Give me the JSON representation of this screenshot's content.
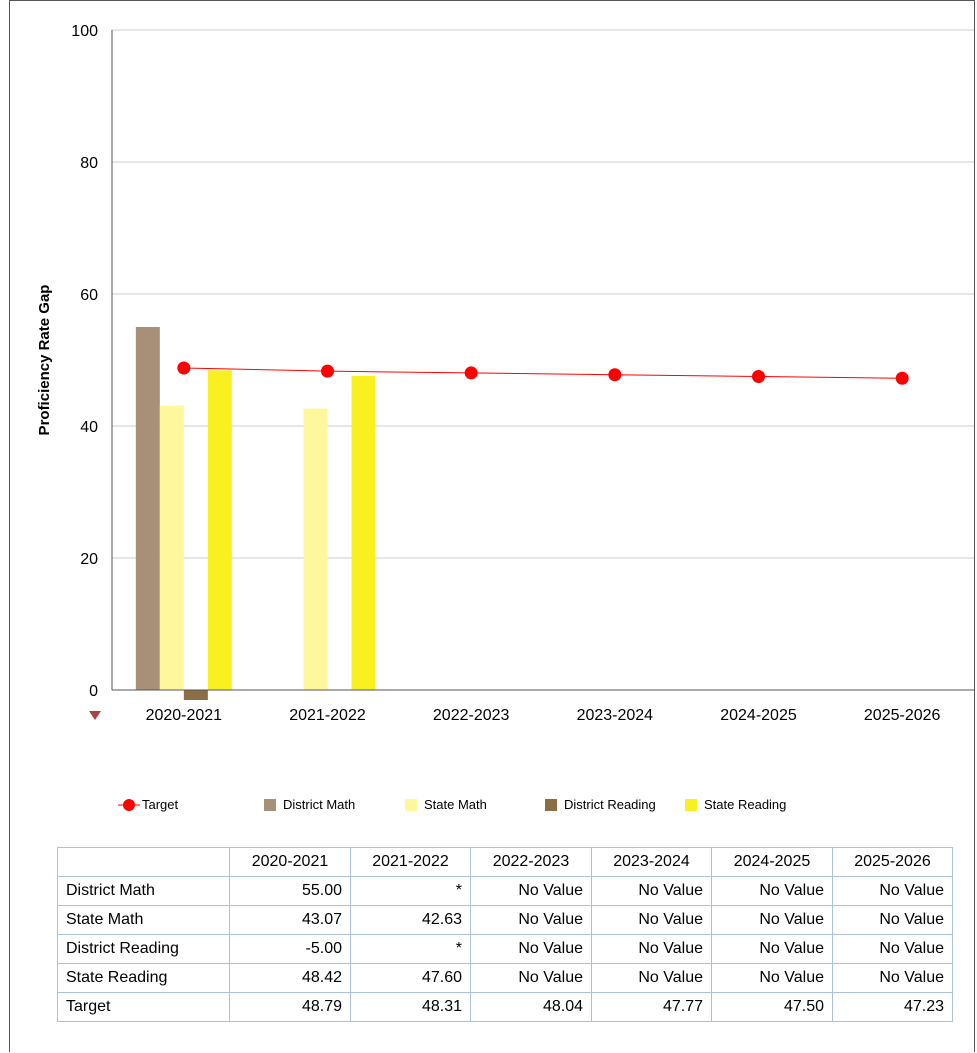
{
  "colors": {
    "target": "#ff0000",
    "district_math": "#a79078",
    "state_math": "#fff79b",
    "district_reading": "#8b6e45",
    "state_reading": "#f9f021",
    "gridline": "#cccccc",
    "axis_marker": "#b04040"
  },
  "chart_data": {
    "type": "bar",
    "ylabel": "Proficiency Rate Gap",
    "ylim": [
      0,
      100
    ],
    "yticks": [
      "0",
      "20",
      "40",
      "60",
      "80",
      "100"
    ],
    "categories": [
      "2020-2021",
      "2021-2022",
      "2022-2023",
      "2023-2024",
      "2024-2025",
      "2025-2026"
    ],
    "grid": true,
    "legend_position": "bottom",
    "series": [
      {
        "name": "District Math",
        "type": "bar",
        "values": [
          55.0,
          null,
          null,
          null,
          null,
          null
        ]
      },
      {
        "name": "State Math",
        "type": "bar",
        "values": [
          43.07,
          42.63,
          null,
          null,
          null,
          null
        ]
      },
      {
        "name": "District Reading",
        "type": "bar",
        "values": [
          -5.0,
          null,
          null,
          null,
          null,
          null
        ]
      },
      {
        "name": "State Reading",
        "type": "bar",
        "values": [
          48.42,
          47.6,
          null,
          null,
          null,
          null
        ]
      },
      {
        "name": "Target",
        "type": "line",
        "values": [
          48.79,
          48.31,
          48.04,
          47.77,
          47.5,
          47.23
        ]
      }
    ]
  },
  "legend": {
    "items": [
      {
        "label": "Target",
        "kind": "line"
      },
      {
        "label": "District Math",
        "kind": "box"
      },
      {
        "label": "State Math",
        "kind": "box"
      },
      {
        "label": "District Reading",
        "kind": "box"
      },
      {
        "label": "State Reading",
        "kind": "box"
      }
    ]
  },
  "table": {
    "headers": [
      "",
      "2020-2021",
      "2021-2022",
      "2022-2023",
      "2023-2024",
      "2024-2025",
      "2025-2026"
    ],
    "rows": [
      {
        "label": "District Math",
        "cells": [
          "55.00",
          "*",
          "No Value",
          "No Value",
          "No Value",
          "No Value"
        ]
      },
      {
        "label": "State Math",
        "cells": [
          "43.07",
          "42.63",
          "No Value",
          "No Value",
          "No Value",
          "No Value"
        ]
      },
      {
        "label": "District Reading",
        "cells": [
          "-5.00",
          "*",
          "No Value",
          "No Value",
          "No Value",
          "No Value"
        ]
      },
      {
        "label": "State Reading",
        "cells": [
          "48.42",
          "47.60",
          "No Value",
          "No Value",
          "No Value",
          "No Value"
        ]
      },
      {
        "label": "Target",
        "cells": [
          "48.79",
          "48.31",
          "48.04",
          "47.77",
          "47.50",
          "47.23"
        ]
      }
    ]
  }
}
